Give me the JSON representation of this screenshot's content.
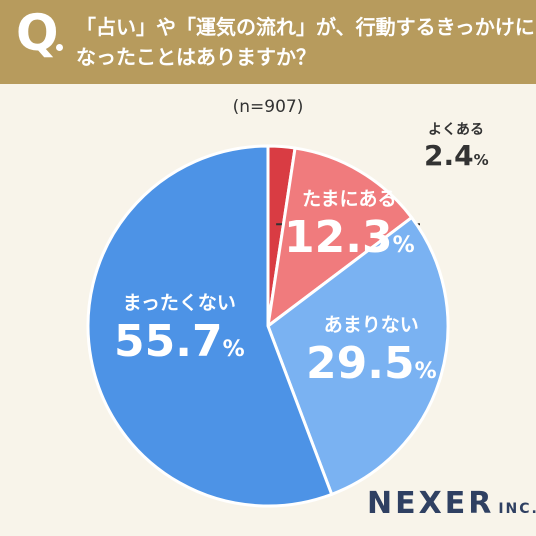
{
  "header": {
    "q_mark": "Q",
    "question_line1": "「占い」や「運気の流れ」が、行動するきっかけに",
    "question_line2": "なったことはありますか？"
  },
  "sample_size": "(n=907)",
  "logo": {
    "name": "NEXER",
    "suffix": "INC."
  },
  "colors": {
    "header_bg": "#b79b5d",
    "background": "#f8f4ea",
    "slice_1": "#d93c43",
    "slice_2": "#f07b7d",
    "slice_3": "#7ab2f2",
    "slice_4": "#4d93e6"
  },
  "chart_data": {
    "type": "pie",
    "start_angle": "12 o'clock",
    "direction": "clockwise",
    "slices": [
      {
        "label": "よくある",
        "value": 2.4,
        "display": "2.4",
        "unit": "%",
        "color": "#d93c43"
      },
      {
        "label": "たまにある",
        "value": 12.3,
        "display": "12.3",
        "unit": "%",
        "color": "#f07b7d"
      },
      {
        "label": "あまりない",
        "value": 29.5,
        "display": "29.5",
        "unit": "%",
        "color": "#7ab2f2"
      },
      {
        "label": "まったくない",
        "value": 55.7,
        "display": "55.7",
        "unit": "%",
        "color": "#4d93e6"
      }
    ]
  }
}
